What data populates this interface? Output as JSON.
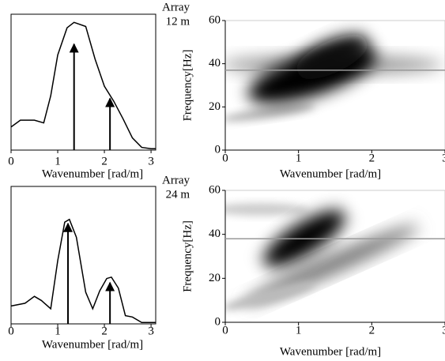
{
  "chart_data": [
    {
      "type": "line",
      "x": [
        0,
        0.2,
        0.5,
        0.7,
        0.85,
        1.0,
        1.2,
        1.35,
        1.6,
        1.8,
        2.0,
        2.2,
        2.4,
        2.6,
        2.8,
        3.0,
        3.1
      ],
      "values": [
        0.17,
        0.22,
        0.22,
        0.2,
        0.4,
        0.7,
        0.9,
        0.94,
        0.91,
        0.67,
        0.47,
        0.36,
        0.23,
        0.09,
        0.02,
        0.01,
        0.01
      ],
      "arrows": [
        {
          "x": 1.35,
          "y": 0.78
        },
        {
          "x": 2.12,
          "y": 0.38
        }
      ],
      "color": "#000000",
      "xlim": [
        0,
        3.1
      ],
      "ylim": [
        0,
        1
      ],
      "xticks": [
        0,
        1,
        2,
        3
      ],
      "xlabel": "Wavenumber [rad/m]"
    },
    {
      "type": "image",
      "annotation": [
        "Array",
        "12 m"
      ],
      "ref_line": 37,
      "xlim": [
        0,
        3
      ],
      "ylim": [
        0,
        60
      ],
      "xticks": [
        0,
        1,
        2,
        3
      ],
      "yticks": [
        0,
        20,
        40,
        60
      ],
      "xlabel": "Wavenumber [rad/m]",
      "ylabel": "Frequency[Hz]"
    },
    {
      "type": "line",
      "x": [
        0,
        0.3,
        0.5,
        0.65,
        0.85,
        1.0,
        1.15,
        1.25,
        1.4,
        1.6,
        1.75,
        1.9,
        2.05,
        2.15,
        2.3,
        2.45,
        2.6,
        2.8,
        3.0,
        3.1
      ],
      "values": [
        0.13,
        0.15,
        0.2,
        0.17,
        0.11,
        0.46,
        0.74,
        0.76,
        0.63,
        0.23,
        0.11,
        0.24,
        0.33,
        0.34,
        0.26,
        0.06,
        0.05,
        0.01,
        0.01,
        0.01
      ],
      "arrows": [
        {
          "x": 1.22,
          "y": 0.73
        },
        {
          "x": 2.12,
          "y": 0.3
        }
      ],
      "color": "#000000",
      "xlim": [
        0,
        3.1
      ],
      "ylim": [
        0,
        1
      ],
      "xticks": [
        0,
        1,
        2,
        3
      ],
      "xlabel": "Wavenumber [rad/m]"
    },
    {
      "type": "image",
      "annotation": [
        "Array",
        "24 m"
      ],
      "ref_line": 38,
      "xlim": [
        0,
        3
      ],
      "ylim": [
        0,
        60
      ],
      "xticks": [
        0,
        1,
        2,
        3
      ],
      "yticks": [
        0,
        20,
        40,
        60
      ],
      "xlabel": "Wavenumber [rad/m]",
      "ylabel": "Frequency[Hz]"
    }
  ]
}
